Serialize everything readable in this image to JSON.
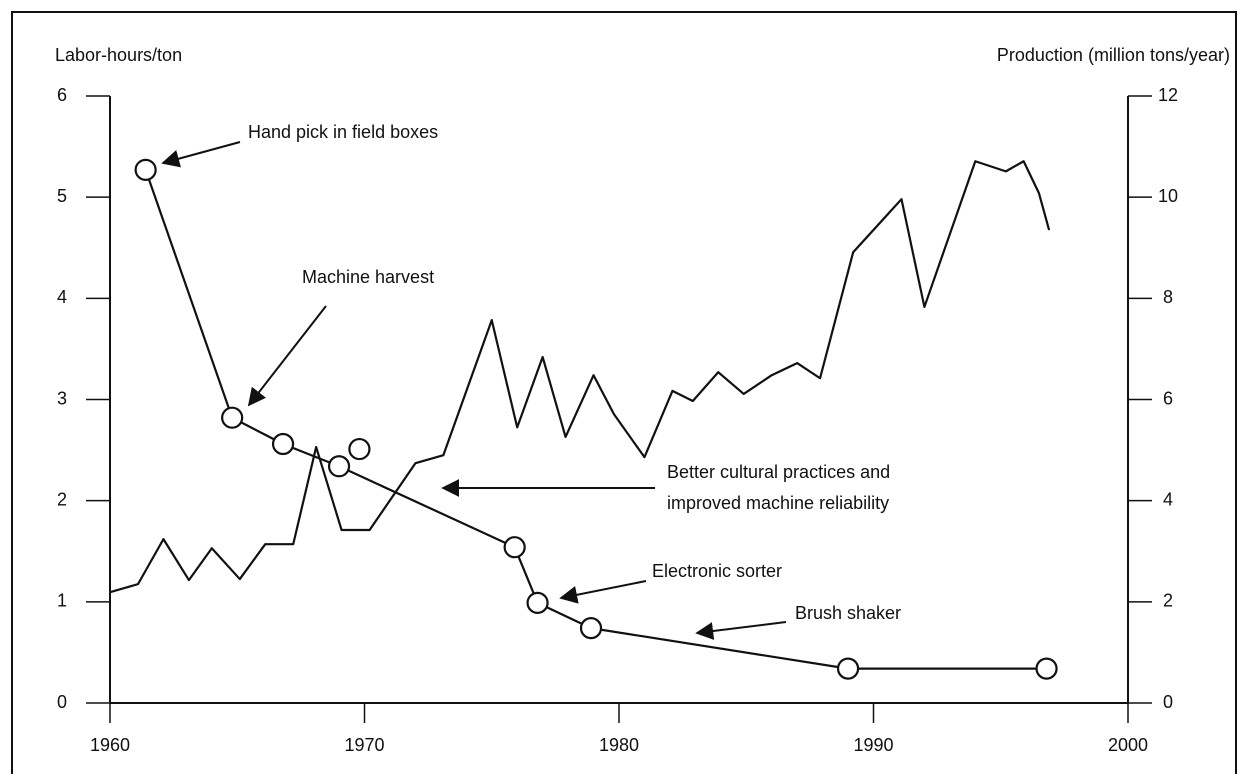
{
  "chart_data": {
    "type": "line",
    "y_label": "Labor-hours/ton",
    "y2_label": "Production (million tons/year)",
    "xlim": [
      1960,
      2000
    ],
    "xticks": [
      1960,
      1970,
      1980,
      1990,
      2000
    ],
    "ylim": [
      0,
      6
    ],
    "yticks": [
      0,
      1,
      2,
      3,
      4,
      5,
      6
    ],
    "y2lim": [
      0,
      12
    ],
    "y2ticks": [
      0,
      2,
      4,
      6,
      8,
      10,
      12
    ],
    "series": [
      {
        "color": "#111111",
        "markers": true,
        "x": [
          1961.4,
          1964.8,
          1966.8,
          1969.0,
          1975.9,
          1976.8,
          1978.9,
          1989.0,
          1996.8
        ],
        "values": [
          5.27,
          2.82,
          2.56,
          2.34,
          1.54,
          0.99,
          0.74,
          0.34,
          0.34
        ]
      },
      {
        "color": "#111111",
        "markers": true,
        "x": [
          1969.8
        ],
        "values": [
          2.51
        ]
      },
      {
        "color": "#111111",
        "markers": false,
        "axis": "y2",
        "x": [
          1960,
          1961.1,
          1962.1,
          1963.1,
          1964.0,
          1965.1,
          1966.1,
          1967.2,
          1968.1,
          1969.1,
          1970.2,
          1972.0,
          1973.1,
          1975.0,
          1976.0,
          1977.0,
          1977.9,
          1979.0,
          1979.8,
          1981.0,
          1982.1,
          1982.9,
          1983.9,
          1984.9,
          1986.0,
          1987.0,
          1987.9,
          1989.2,
          1991.1,
          1992.0,
          1994.0,
          1995.2,
          1995.9,
          1996.5,
          1996.9
        ],
        "values": [
          2.19,
          2.35,
          3.24,
          2.43,
          3.06,
          2.45,
          3.14,
          3.14,
          5.06,
          3.42,
          3.42,
          4.74,
          4.9,
          7.57,
          5.45,
          6.84,
          5.26,
          6.48,
          5.71,
          4.86,
          6.17,
          5.97,
          6.54,
          6.11,
          6.48,
          6.72,
          6.42,
          8.91,
          9.96,
          7.83,
          10.71,
          10.51,
          10.71,
          10.08,
          9.35
        ]
      }
    ],
    "annotations": [
      [
        "Hand pick in field boxes"
      ],
      [
        "Machine harvest"
      ],
      [
        "Better cultural practices and",
        "improved machine reliability"
      ],
      [
        "Electronic sorter"
      ],
      [
        "Brush shaker"
      ]
    ]
  }
}
